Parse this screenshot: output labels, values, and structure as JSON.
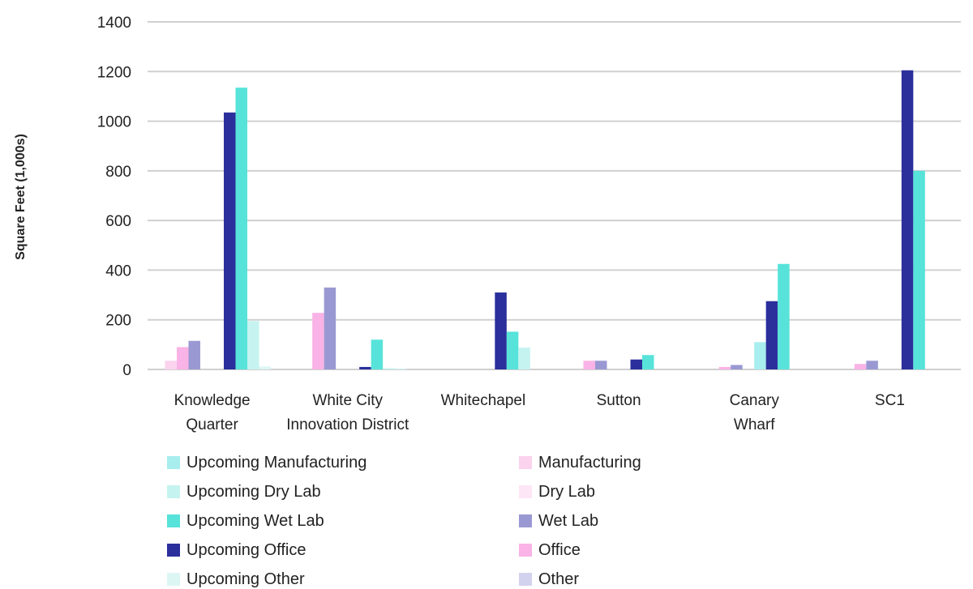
{
  "chart_data": {
    "type": "bar",
    "ylabel": "Square Feet (1,000s)",
    "xlabel": "",
    "ylim": [
      0,
      1400
    ],
    "yticks": [
      0,
      200,
      400,
      600,
      800,
      1000,
      1200,
      1400
    ],
    "grid": true,
    "legend_position": "bottom",
    "categories": [
      [
        "Knowledge",
        "Quarter"
      ],
      [
        "White City",
        "Innovation District"
      ],
      [
        "Whitechapel"
      ],
      [
        "Sutton"
      ],
      [
        "Canary",
        "Wharf"
      ],
      [
        "SC1"
      ]
    ],
    "series": [
      {
        "name": "Other",
        "color": "#d3d2ee",
        "values": [
          0,
          0,
          0,
          0,
          0,
          0
        ]
      },
      {
        "name": "Manufacturing",
        "color": "#fbd3ee",
        "values": [
          35,
          0,
          0,
          0,
          0,
          0
        ]
      },
      {
        "name": "Office",
        "color": "#f9b3e6",
        "values": [
          90,
          228,
          0,
          35,
          10,
          22
        ]
      },
      {
        "name": "Wet Lab",
        "color": "#9a98d2",
        "values": [
          115,
          330,
          0,
          35,
          18,
          35
        ]
      },
      {
        "name": "Dry Lab",
        "color": "#fde6f6",
        "values": [
          0,
          0,
          0,
          0,
          0,
          0
        ]
      },
      {
        "name": "Upcoming Manufacturing",
        "color": "#a8eeee",
        "values": [
          0,
          0,
          0,
          0,
          110,
          0
        ]
      },
      {
        "name": "Upcoming Office",
        "color": "#2b2f9c",
        "values": [
          1035,
          10,
          310,
          40,
          275,
          1205
        ]
      },
      {
        "name": "Upcoming Wet Lab",
        "color": "#57e3d9",
        "values": [
          1135,
          120,
          152,
          58,
          425,
          800
        ]
      },
      {
        "name": "Upcoming Dry Lab",
        "color": "#c5f3f0",
        "values": [
          195,
          5,
          88,
          0,
          0,
          0
        ]
      },
      {
        "name": "Upcoming Other",
        "color": "#dcf6f4",
        "values": [
          12,
          5,
          0,
          0,
          0,
          0
        ]
      }
    ],
    "legend": {
      "left": [
        "Upcoming Manufacturing",
        "Upcoming Dry Lab",
        "Upcoming Wet Lab",
        "Upcoming Office",
        "Upcoming Other"
      ],
      "right": [
        "Manufacturing",
        "Dry Lab",
        "Wet Lab",
        "Office",
        "Other"
      ]
    }
  }
}
